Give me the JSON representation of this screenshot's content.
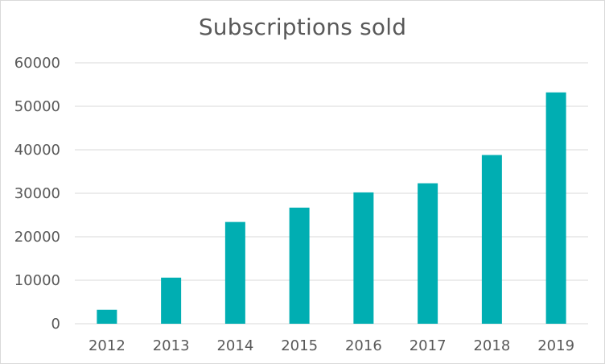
{
  "chart_data": {
    "type": "bar",
    "title": "Subscriptions sold",
    "categories": [
      "2012",
      "2013",
      "2014",
      "2015",
      "2016",
      "2017",
      "2018",
      "2019"
    ],
    "values": [
      3200,
      10600,
      23400,
      26700,
      30200,
      32300,
      38800,
      53200
    ],
    "xlabel": "",
    "ylabel": "",
    "ylim": [
      0,
      60000
    ],
    "y_ticks": [
      "0",
      "10000",
      "20000",
      "30000",
      "40000",
      "50000",
      "60000"
    ],
    "grid": true,
    "legend": "none",
    "bar_color": "#00AEB2",
    "grid_color": "#d9d9d9",
    "text_color": "#595959"
  }
}
